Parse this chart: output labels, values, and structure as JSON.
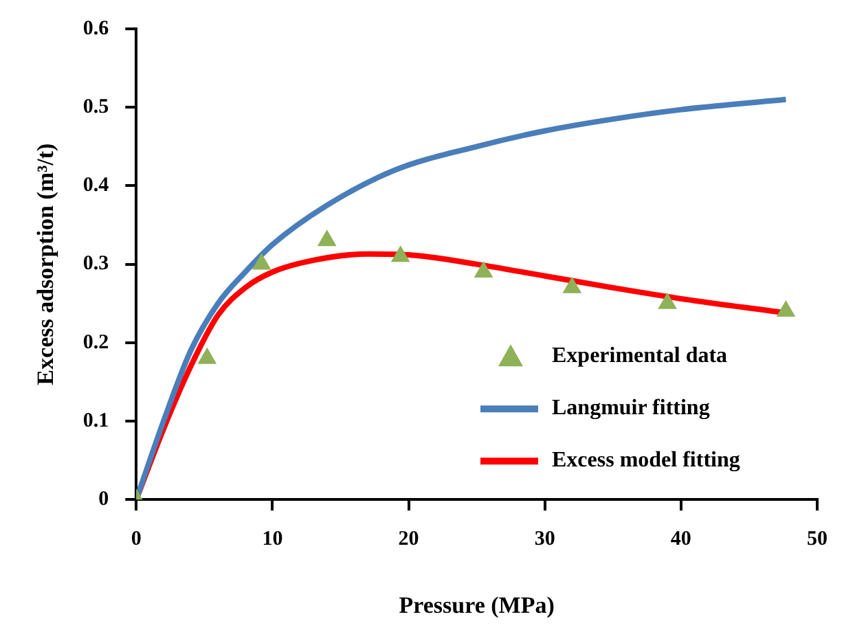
{
  "chart_data": {
    "type": "line",
    "xlabel": "Pressure (MPa)",
    "ylabel": "Excess adsorption (m³/t)",
    "xlim": [
      0,
      50
    ],
    "xticks": [
      0,
      10,
      20,
      30,
      40,
      50
    ],
    "ylim": [
      0,
      0.6
    ],
    "yticks": [
      0,
      0.1,
      0.2,
      0.3,
      0.4,
      0.5,
      0.6
    ],
    "grid": false,
    "legend": "bottom right",
    "series": [
      {
        "name": "Experimental data",
        "type": "scatter",
        "marker": "triangle",
        "color": "#8fb157",
        "x": [
          0,
          5.2,
          9.2,
          14,
          19.4,
          25.5,
          32,
          39,
          47.7
        ],
        "values": [
          0,
          0.18,
          0.3,
          0.33,
          0.31,
          0.29,
          0.27,
          0.25,
          0.24
        ]
      },
      {
        "name": "Langmuir fitting",
        "color": "#4a7ebb",
        "x": [
          0,
          2,
          4,
          6,
          8,
          10,
          14,
          19,
          25,
          30,
          35,
          40,
          47.7
        ],
        "values": [
          0,
          0.1,
          0.19,
          0.25,
          0.29,
          0.325,
          0.375,
          0.42,
          0.45,
          0.47,
          0.485,
          0.497,
          0.51
        ]
      },
      {
        "name": "Excess model fitting",
        "color": "#ff0000",
        "x": [
          0,
          2,
          4,
          6,
          8,
          10,
          13,
          17,
          20,
          25,
          30,
          35,
          40,
          47.7
        ],
        "values": [
          0,
          0.09,
          0.17,
          0.235,
          0.27,
          0.29,
          0.305,
          0.313,
          0.312,
          0.3,
          0.285,
          0.27,
          0.256,
          0.238
        ]
      }
    ]
  }
}
